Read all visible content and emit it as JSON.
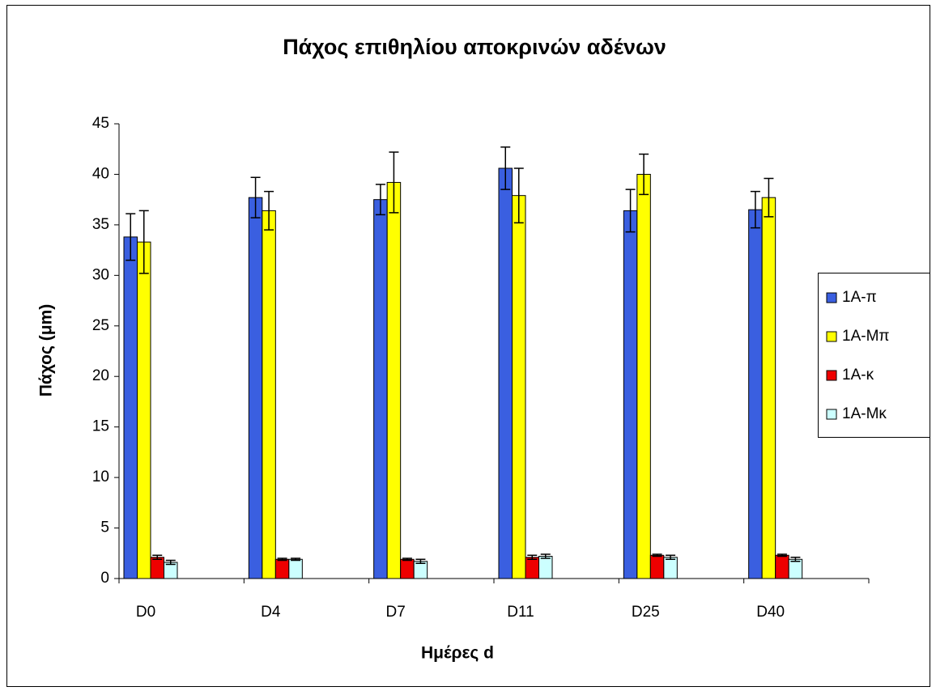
{
  "chart_data": {
    "type": "bar",
    "title": "Πάχος επιθηλίου αποκρινών αδένων",
    "x_label": "Ημέρες d",
    "y_label": "Πάχος (μm)",
    "categories": [
      "D0",
      "D4",
      "D7",
      "D11",
      "D25",
      "D40"
    ],
    "series": [
      {
        "name": "1A-π",
        "color": "#3a5fe0",
        "values": [
          33.8,
          37.7,
          37.5,
          40.6,
          36.4,
          36.5
        ],
        "errors": [
          2.3,
          2.0,
          1.5,
          2.1,
          2.1,
          1.8
        ]
      },
      {
        "name": "1A-Μπ",
        "color": "#ffff00",
        "values": [
          33.3,
          36.4,
          39.2,
          37.9,
          40.0,
          37.7
        ],
        "errors": [
          3.1,
          1.9,
          3.0,
          2.7,
          2.0,
          1.9
        ]
      },
      {
        "name": "1A-κ",
        "color": "#ee0000",
        "values": [
          2.1,
          1.9,
          1.9,
          2.1,
          2.3,
          2.3
        ],
        "errors": [
          0.2,
          0.1,
          0.1,
          0.2,
          0.1,
          0.1
        ]
      },
      {
        "name": "1A-Μκ",
        "color": "#ccffff",
        "values": [
          1.6,
          1.9,
          1.7,
          2.2,
          2.1,
          1.9
        ],
        "errors": [
          0.2,
          0.1,
          0.2,
          0.2,
          0.2,
          0.2
        ]
      }
    ],
    "ylim": [
      0,
      45
    ],
    "yticks": [
      0,
      5,
      10,
      15,
      20,
      25,
      30,
      35,
      40,
      45
    ],
    "legend": "right",
    "grid": false
  }
}
